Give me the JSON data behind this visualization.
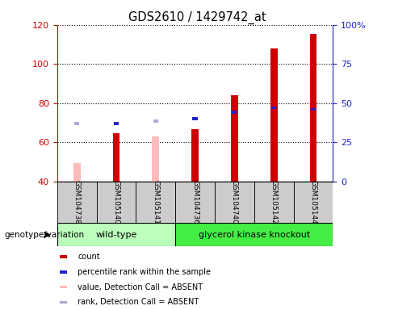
{
  "title": "GDS2610 / 1429742_at",
  "samples": [
    "GSM104738",
    "GSM105140",
    "GSM105141",
    "GSM104736",
    "GSM104740",
    "GSM105142",
    "GSM105144"
  ],
  "group_labels": [
    "wild-type",
    "glycerol kinase knockout"
  ],
  "wt_indices": [
    0,
    1,
    2
  ],
  "gk_indices": [
    3,
    4,
    5,
    6
  ],
  "count_values": [
    null,
    64.5,
    null,
    66.5,
    84.0,
    108.0,
    115.5
  ],
  "rank_values_pct": [
    null,
    37.0,
    null,
    40.0,
    44.0,
    47.0,
    46.0
  ],
  "absent_value_values": [
    49.5,
    null,
    63.0,
    null,
    null,
    null,
    null
  ],
  "absent_rank_pct": [
    37.0,
    null,
    38.5,
    null,
    null,
    null,
    null
  ],
  "ylim_left": [
    40,
    120
  ],
  "ylim_right": [
    0,
    100
  ],
  "yticks_left": [
    40,
    60,
    80,
    100,
    120
  ],
  "yticks_right": [
    0,
    25,
    50,
    75,
    100
  ],
  "yticklabels_right": [
    "0",
    "25",
    "50",
    "75",
    "100%"
  ],
  "count_color": "#cc0000",
  "rank_color": "#2222cc",
  "absent_value_color": "#ffbbbb",
  "absent_rank_color": "#aaaadd",
  "bar_bottom": 40,
  "bg_label_area": "#cccccc",
  "wt_color": "#bbffbb",
  "gk_color": "#44ee44",
  "legend_labels": [
    "count",
    "percentile rank within the sample",
    "value, Detection Call = ABSENT",
    "rank, Detection Call = ABSENT"
  ],
  "legend_colors": [
    "#cc0000",
    "#2222cc",
    "#ffbbbb",
    "#aaaadd"
  ],
  "genotype_label": "genotype/variation",
  "ylabel_left_color": "#cc0000",
  "ylabel_right_color": "#2222cc",
  "bar_width": 0.18,
  "rank_marker_size": 5.0
}
